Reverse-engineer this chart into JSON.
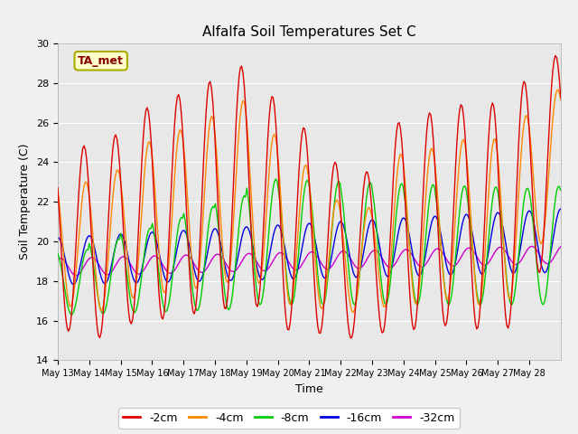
{
  "title": "Alfalfa Soil Temperatures Set C",
  "xlabel": "Time",
  "ylabel": "Soil Temperature (C)",
  "ylim": [
    14,
    30
  ],
  "n_days": 16,
  "tick_labels": [
    "May 13",
    "May 14",
    "May 15",
    "May 16",
    "May 17",
    "May 18",
    "May 19",
    "May 20",
    "May 21",
    "May 22",
    "May 23",
    "May 24",
    "May 25",
    "May 26",
    "May 27",
    "May 28"
  ],
  "yticks": [
    14,
    16,
    18,
    20,
    22,
    24,
    26,
    28,
    30
  ],
  "annotation": "TA_met",
  "bg_color": "#e8e8e8",
  "fig_color": "#f0f0f0",
  "line_colors": {
    "-2cm": "#dd0000",
    "-4cm": "#ff8800",
    "-8cm": "#00cc00",
    "-16cm": "#0000dd",
    "-32cm": "#cc00cc"
  },
  "legend_labels": [
    "-2cm",
    "-4cm",
    "-8cm",
    "-16cm",
    "-32cm"
  ],
  "peaks_2": [
    25.0,
    24.8,
    25.5,
    27.0,
    27.5,
    28.2,
    29.0,
    27.0,
    25.5,
    23.7,
    23.5,
    26.5,
    26.5,
    27.0,
    27.0,
    28.3
  ],
  "troughs_2": [
    15.8,
    14.8,
    15.8,
    15.9,
    16.4,
    16.2,
    17.3,
    15.5,
    15.5,
    15.0,
    15.3,
    15.5,
    15.6,
    16.0,
    14.7,
    17.5
  ]
}
